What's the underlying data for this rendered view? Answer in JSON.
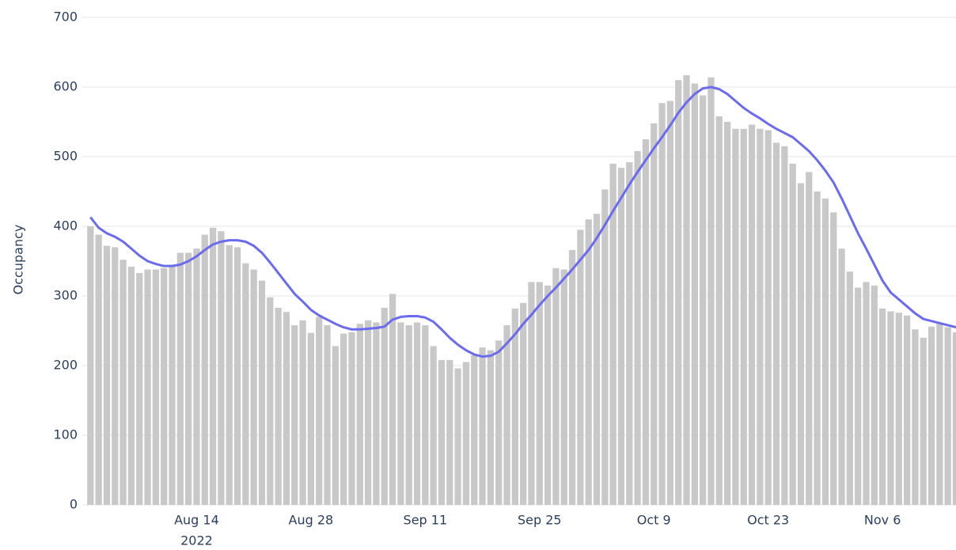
{
  "chart_data": {
    "type": "bar+line",
    "y_label": "Occupancy",
    "x": [
      "2022-08-01",
      "2022-08-02",
      "2022-08-03",
      "2022-08-04",
      "2022-08-05",
      "2022-08-06",
      "2022-08-07",
      "2022-08-08",
      "2022-08-09",
      "2022-08-10",
      "2022-08-11",
      "2022-08-12",
      "2022-08-13",
      "2022-08-14",
      "2022-08-15",
      "2022-08-16",
      "2022-08-17",
      "2022-08-18",
      "2022-08-19",
      "2022-08-20",
      "2022-08-21",
      "2022-08-22",
      "2022-08-23",
      "2022-08-24",
      "2022-08-25",
      "2022-08-26",
      "2022-08-27",
      "2022-08-28",
      "2022-08-29",
      "2022-08-30",
      "2022-08-31",
      "2022-09-01",
      "2022-09-02",
      "2022-09-03",
      "2022-09-04",
      "2022-09-05",
      "2022-09-06",
      "2022-09-07",
      "2022-09-08",
      "2022-09-09",
      "2022-09-10",
      "2022-09-11",
      "2022-09-12",
      "2022-09-13",
      "2022-09-14",
      "2022-09-15",
      "2022-09-16",
      "2022-09-17",
      "2022-09-18",
      "2022-09-19",
      "2022-09-20",
      "2022-09-21",
      "2022-09-22",
      "2022-09-23",
      "2022-09-24",
      "2022-09-25",
      "2022-09-26",
      "2022-09-27",
      "2022-09-28",
      "2022-09-29",
      "2022-09-30",
      "2022-10-01",
      "2022-10-02",
      "2022-10-03",
      "2022-10-04",
      "2022-10-05",
      "2022-10-06",
      "2022-10-07",
      "2022-10-08",
      "2022-10-09",
      "2022-10-10",
      "2022-10-11",
      "2022-10-12",
      "2022-10-13",
      "2022-10-14",
      "2022-10-15",
      "2022-10-16",
      "2022-10-17",
      "2022-10-18",
      "2022-10-19",
      "2022-10-20",
      "2022-10-21",
      "2022-10-22",
      "2022-10-23",
      "2022-10-24",
      "2022-10-25",
      "2022-10-26",
      "2022-10-27",
      "2022-10-28",
      "2022-10-29",
      "2022-10-30",
      "2022-10-31",
      "2022-11-01",
      "2022-11-02",
      "2022-11-03",
      "2022-11-04",
      "2022-11-05",
      "2022-11-06",
      "2022-11-07",
      "2022-11-08",
      "2022-11-09",
      "2022-11-10",
      "2022-11-11",
      "2022-11-12",
      "2022-11-13",
      "2022-11-14",
      "2022-11-15"
    ],
    "series": [
      {
        "type": "bar",
        "color": "#c8c8c8",
        "values": [
          400,
          388,
          372,
          370,
          352,
          342,
          333,
          338,
          338,
          340,
          345,
          362,
          362,
          368,
          388,
          398,
          393,
          373,
          370,
          347,
          338,
          322,
          298,
          283,
          277,
          258,
          265,
          247,
          270,
          258,
          228,
          246,
          248,
          260,
          265,
          262,
          283,
          303,
          262,
          258,
          262,
          258,
          228,
          208,
          208,
          196,
          205,
          215,
          226,
          222,
          236,
          258,
          282,
          290,
          320,
          320,
          315,
          340,
          338,
          366,
          395,
          410,
          418,
          453,
          490,
          484,
          492,
          508,
          525,
          548,
          577,
          580,
          610,
          617,
          605,
          588,
          614,
          558,
          550,
          540,
          540,
          546,
          540,
          538,
          520,
          515,
          490,
          462,
          478,
          450,
          440,
          420,
          368,
          335,
          312,
          320,
          315,
          282,
          278,
          276,
          272,
          252,
          240,
          256,
          262,
          255,
          248
        ]
      },
      {
        "type": "line",
        "color": "#6b6bef",
        "values": [
          413,
          398,
          390,
          385,
          378,
          368,
          358,
          350,
          346,
          343,
          343,
          345,
          350,
          357,
          366,
          374,
          378,
          380,
          380,
          378,
          372,
          362,
          348,
          333,
          318,
          303,
          292,
          280,
          272,
          266,
          260,
          255,
          252,
          252,
          253,
          254,
          256,
          266,
          270,
          271,
          271,
          269,
          263,
          252,
          240,
          230,
          222,
          216,
          213,
          214,
          220,
          232,
          245,
          260,
          273,
          287,
          300,
          312,
          325,
          338,
          352,
          366,
          383,
          402,
          422,
          441,
          460,
          478,
          495,
          512,
          528,
          545,
          563,
          578,
          590,
          598,
          600,
          597,
          590,
          580,
          570,
          562,
          555,
          547,
          540,
          534,
          528,
          518,
          508,
          495,
          480,
          463,
          440,
          415,
          390,
          368,
          345,
          322,
          305,
          295,
          285,
          275,
          267,
          264,
          261,
          258,
          255
        ]
      }
    ],
    "xlim": [
      "2022-07-31T12:00:00Z",
      "2022-11-15T12:00:00Z"
    ],
    "xticks": [
      {
        "value": "2022-08-14",
        "label": "Aug 14"
      },
      {
        "value": "2022-08-28",
        "label": "Aug 28"
      },
      {
        "value": "2022-09-11",
        "label": "Sep 11"
      },
      {
        "value": "2022-09-25",
        "label": "Sep 25"
      },
      {
        "value": "2022-10-09",
        "label": "Oct 9"
      },
      {
        "value": "2022-10-23",
        "label": "Oct 23"
      },
      {
        "value": "2022-11-06",
        "label": "Nov 6"
      }
    ],
    "x_year_label": "2022",
    "ylim": [
      0,
      700
    ],
    "yticks": [
      0,
      100,
      200,
      300,
      400,
      500,
      600,
      700
    ],
    "grid": true
  }
}
